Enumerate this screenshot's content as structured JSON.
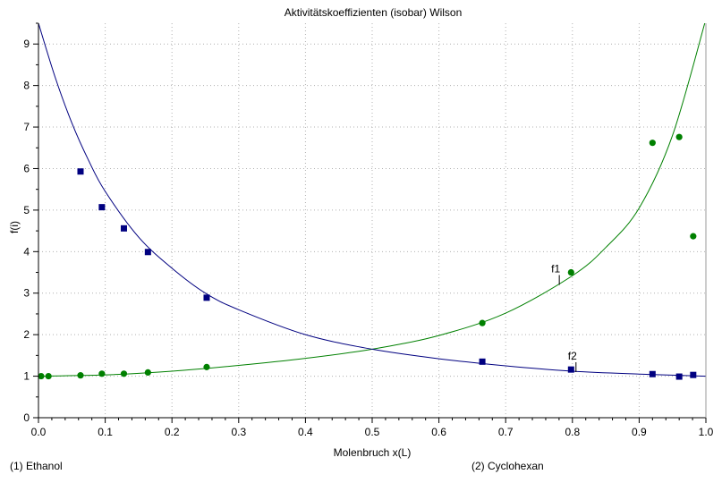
{
  "chart_data": {
    "type": "scatter",
    "title": "Aktivitätskoeffizienten (isobar) Wilson",
    "xlabel": "Molenbruch x(L)",
    "ylabel": "f(i)",
    "xlim": [
      0,
      1
    ],
    "ylim": [
      0,
      9.5
    ],
    "x_ticks": [
      0,
      0.1,
      0.2,
      0.3,
      0.4,
      0.5,
      0.6,
      0.7,
      0.8,
      0.9,
      1
    ],
    "x_tick_labels": [
      "0.0",
      "0.1",
      "0.2",
      "0.3",
      "0.4",
      "0.5",
      "0.6",
      "0.7",
      "0.8",
      "0.9",
      "1.0"
    ],
    "y_ticks": [
      0,
      1,
      2,
      3,
      4,
      5,
      6,
      7,
      8,
      9
    ],
    "y_tick_labels": [
      "0",
      "1",
      "2",
      "3",
      "4",
      "5",
      "6",
      "7",
      "8",
      "9"
    ],
    "grid": true,
    "colors": {
      "f1": "#008000",
      "f2": "#000080",
      "grid": "#b0b0b0",
      "axis": "#000000"
    },
    "series": [
      {
        "name": "f1",
        "marker": "circle",
        "points": [
          {
            "x": 0.004,
            "y": 1.0
          },
          {
            "x": 0.015,
            "y": 1.0
          },
          {
            "x": 0.063,
            "y": 1.02
          },
          {
            "x": 0.095,
            "y": 1.06
          },
          {
            "x": 0.128,
            "y": 1.06
          },
          {
            "x": 0.164,
            "y": 1.09
          },
          {
            "x": 0.252,
            "y": 1.22
          },
          {
            "x": 0.665,
            "y": 2.28
          },
          {
            "x": 0.798,
            "y": 3.5
          },
          {
            "x": 0.92,
            "y": 6.62
          },
          {
            "x": 0.96,
            "y": 6.76
          },
          {
            "x": 0.981,
            "y": 4.37
          }
        ],
        "curve": [
          {
            "x": 0.0,
            "y": 1.0
          },
          {
            "x": 0.1,
            "y": 1.03
          },
          {
            "x": 0.2,
            "y": 1.12
          },
          {
            "x": 0.3,
            "y": 1.26
          },
          {
            "x": 0.4,
            "y": 1.43
          },
          {
            "x": 0.5,
            "y": 1.65
          },
          {
            "x": 0.6,
            "y": 1.98
          },
          {
            "x": 0.7,
            "y": 2.52
          },
          {
            "x": 0.8,
            "y": 3.42
          },
          {
            "x": 0.85,
            "y": 4.1
          },
          {
            "x": 0.9,
            "y": 5.05
          },
          {
            "x": 0.95,
            "y": 6.8
          },
          {
            "x": 1.0,
            "y": 9.6
          }
        ]
      },
      {
        "name": "f2",
        "marker": "square",
        "points": [
          {
            "x": 0.063,
            "y": 5.93
          },
          {
            "x": 0.095,
            "y": 5.07
          },
          {
            "x": 0.128,
            "y": 4.56
          },
          {
            "x": 0.164,
            "y": 3.99
          },
          {
            "x": 0.252,
            "y": 2.89
          },
          {
            "x": 0.665,
            "y": 1.35
          },
          {
            "x": 0.798,
            "y": 1.16
          },
          {
            "x": 0.92,
            "y": 1.05
          },
          {
            "x": 0.96,
            "y": 0.99
          },
          {
            "x": 0.981,
            "y": 1.03
          }
        ],
        "curve": [
          {
            "x": 0.0,
            "y": 9.5
          },
          {
            "x": 0.025,
            "y": 8.2
          },
          {
            "x": 0.05,
            "y": 7.1
          },
          {
            "x": 0.075,
            "y": 6.2
          },
          {
            "x": 0.1,
            "y": 5.45
          },
          {
            "x": 0.15,
            "y": 4.35
          },
          {
            "x": 0.2,
            "y": 3.6
          },
          {
            "x": 0.25,
            "y": 3.0
          },
          {
            "x": 0.3,
            "y": 2.6
          },
          {
            "x": 0.4,
            "y": 2.0
          },
          {
            "x": 0.5,
            "y": 1.65
          },
          {
            "x": 0.6,
            "y": 1.42
          },
          {
            "x": 0.7,
            "y": 1.25
          },
          {
            "x": 0.8,
            "y": 1.12
          },
          {
            "x": 0.9,
            "y": 1.05
          },
          {
            "x": 1.0,
            "y": 1.0
          }
        ]
      }
    ],
    "annotations": [
      {
        "text": "f1",
        "x": 0.775,
        "y": 3.5
      },
      {
        "text": "f2",
        "x": 0.8,
        "y": 1.4
      }
    ]
  },
  "footer": {
    "component_1": "(1) Ethanol",
    "component_2": "(2) Cyclohexan"
  }
}
